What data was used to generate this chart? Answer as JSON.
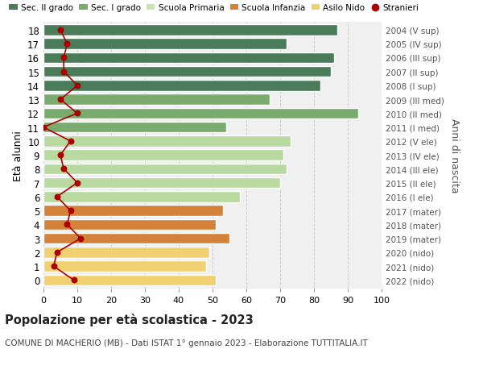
{
  "ages": [
    18,
    17,
    16,
    15,
    14,
    13,
    12,
    11,
    10,
    9,
    8,
    7,
    6,
    5,
    4,
    3,
    2,
    1,
    0
  ],
  "anni_nascita": [
    "2004 (V sup)",
    "2005 (IV sup)",
    "2006 (III sup)",
    "2007 (II sup)",
    "2008 (I sup)",
    "2009 (III med)",
    "2010 (II med)",
    "2011 (I med)",
    "2012 (V ele)",
    "2013 (IV ele)",
    "2014 (III ele)",
    "2015 (II ele)",
    "2016 (I ele)",
    "2017 (mater)",
    "2018 (mater)",
    "2019 (mater)",
    "2020 (nido)",
    "2021 (nido)",
    "2022 (nido)"
  ],
  "bar_values": [
    87,
    72,
    86,
    85,
    82,
    67,
    93,
    54,
    73,
    71,
    72,
    70,
    58,
    53,
    51,
    55,
    49,
    48,
    51
  ],
  "bar_colors": [
    "#4a7c59",
    "#4a7c59",
    "#4a7c59",
    "#4a7c59",
    "#4a7c59",
    "#7aab6e",
    "#7aab6e",
    "#7aab6e",
    "#b8d9a0",
    "#b8d9a0",
    "#b8d9a0",
    "#b8d9a0",
    "#b8d9a0",
    "#d4813a",
    "#d4813a",
    "#d4813a",
    "#f0d070",
    "#f0d070",
    "#f0d070"
  ],
  "stranieri_values": [
    5,
    7,
    6,
    6,
    10,
    5,
    10,
    0,
    8,
    5,
    6,
    10,
    4,
    8,
    7,
    11,
    4,
    3,
    9
  ],
  "stranieri_color": "#aa0000",
  "background_color": "#f0f0f0",
  "grid_color": "#cccccc",
  "title": "Popolazione per età scolastica - 2023",
  "subtitle": "COMUNE DI MACHERIO (MB) - Dati ISTAT 1° gennaio 2023 - Elaborazione TUTTITALIA.IT",
  "ylabel": "Età alunni",
  "ylabel2": "Anni di nascita",
  "xlim": [
    0,
    100
  ],
  "legend_labels": [
    "Sec. II grado",
    "Sec. I grado",
    "Scuola Primaria",
    "Scuola Infanzia",
    "Asilo Nido",
    "Stranieri"
  ],
  "legend_colors": [
    "#4a7c59",
    "#7aab6e",
    "#c8e6b0",
    "#d4813a",
    "#f0d070",
    "#cc0000"
  ]
}
